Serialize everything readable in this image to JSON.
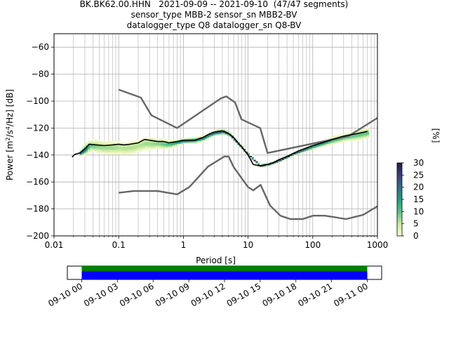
{
  "title_lines": [
    "BK.BK62.00.HHN   2021-09-09 -- 2021-09-10  (47/47 segments)",
    "sensor_type MBB-2 sensor_sn MBB2-BV",
    "datalogger_type Q8 datalogger_sn Q8-BV"
  ],
  "chart_data": {
    "type": "heatmap",
    "xlabel": "Period [s]",
    "ylabel": "Power [m²/s⁴/Hz] [dB]",
    "ylabel_parts": {
      "main": "Power [m",
      "sup1": "2",
      "mid": "/s",
      "sup2": "4",
      "end": "/Hz] [dB]"
    },
    "x_scale": "log",
    "xlim": [
      0.01,
      1000
    ],
    "ylim": [
      -200,
      -50
    ],
    "x_ticks": [
      0.01,
      0.1,
      1,
      10,
      100,
      1000
    ],
    "x_tick_labels": [
      "0.01",
      "0.1",
      "1",
      "10",
      "100",
      "1000"
    ],
    "y_ticks": [
      -200,
      -180,
      -160,
      -140,
      -120,
      -100,
      -80,
      -60
    ],
    "y_tick_labels": [
      "−200",
      "−180",
      "−160",
      "−140",
      "−120",
      "−100",
      "−80",
      "−60"
    ],
    "grid": true,
    "colorbar": {
      "label": "[%]",
      "range": [
        0,
        30
      ],
      "ticks": [
        0,
        5,
        10,
        15,
        20,
        25,
        30
      ],
      "tick_labels": [
        "0",
        "5",
        "10",
        "15",
        "20",
        "25",
        "30"
      ],
      "colors": [
        "#fefdd8",
        "#c4e89a",
        "#53c689",
        "#1e9e86",
        "#2f6f8a",
        "#3b3e86",
        "#2a1a49"
      ]
    },
    "noise_models": {
      "color": "#666666",
      "nhnm": {
        "x": [
          0.1,
          0.22,
          0.32,
          0.8,
          3.8,
          4.6,
          6.3,
          7.9,
          15.4,
          20,
          354.8,
          1000
        ],
        "y": [
          -91.5,
          -97.4,
          -110.5,
          -120,
          -98,
          -96.5,
          -101,
          -113.5,
          -120,
          -138.5,
          -126,
          -112.5
        ]
      },
      "nlnm": {
        "x": [
          0.1,
          0.17,
          0.4,
          0.8,
          1.24,
          2.4,
          4.3,
          5,
          6,
          10,
          12,
          15.6,
          21.9,
          31.6,
          45,
          70,
          101,
          154,
          328,
          600,
          1000
        ],
        "y": [
          -168,
          -166.7,
          -166.7,
          -169.2,
          -163.7,
          -148.6,
          -141.1,
          -141.1,
          -149,
          -163.8,
          -166.2,
          -162.1,
          -177.5,
          -185,
          -187.5,
          -187.5,
          -185,
          -185,
          -187.5,
          -184.4,
          -178
        ]
      }
    },
    "mode_line": {
      "color": "#000000",
      "x": [
        0.019,
        0.021,
        0.025,
        0.03,
        0.035,
        0.045,
        0.06,
        0.08,
        0.1,
        0.12,
        0.15,
        0.2,
        0.25,
        0.3,
        0.4,
        0.5,
        0.6,
        0.8,
        1,
        1.5,
        2,
        2.5,
        3,
        4,
        5,
        6,
        7,
        8,
        10,
        12,
        15,
        20,
        25,
        30,
        40,
        60,
        100,
        150,
        200,
        300,
        500,
        700
      ],
      "y": [
        -141.5,
        -139.5,
        -138.5,
        -135.5,
        -132,
        -132.5,
        -133,
        -132.5,
        -132,
        -132.5,
        -132,
        -131,
        -128.5,
        -129,
        -130,
        -130,
        -131,
        -130,
        -129,
        -129,
        -127,
        -124.5,
        -123,
        -122,
        -124,
        -127,
        -131,
        -134,
        -140,
        -147,
        -148,
        -147,
        -145.5,
        -143.5,
        -141,
        -137,
        -133,
        -130.5,
        -128.5,
        -126,
        -124,
        -122.5
      ]
    },
    "heatmap_samples": {
      "x": [
        0.025,
        0.03,
        0.035,
        0.045,
        0.06,
        0.08,
        0.1,
        0.12,
        0.15,
        0.2,
        0.25,
        0.3,
        0.4,
        0.5,
        0.6,
        0.8,
        1,
        1.5,
        2,
        2.5,
        3,
        4,
        5,
        10,
        15,
        20,
        30,
        50,
        100,
        150,
        200,
        300,
        500,
        700
      ],
      "center": [
        -138.5,
        -135.5,
        -133,
        -133.5,
        -134.5,
        -134.5,
        -134.5,
        -135,
        -134.5,
        -133,
        -131.5,
        -131.5,
        -131.5,
        -132,
        -132,
        -130.5,
        -129.5,
        -129,
        -127.5,
        -125,
        -123.5,
        -122.5,
        -124.5,
        -140,
        -148,
        -147,
        -144,
        -139,
        -133.5,
        -131,
        -129,
        -127,
        -125,
        -123.5
      ],
      "spread": [
        2,
        4,
        4,
        5,
        5,
        5,
        5,
        5,
        5,
        5,
        5,
        5,
        4,
        4,
        3,
        2,
        2,
        2,
        2,
        2,
        2,
        2,
        1.5,
        1,
        1,
        1,
        1,
        1,
        2,
        2,
        3,
        3,
        4,
        4
      ],
      "peak_percent": [
        25,
        20,
        10,
        8,
        7,
        7,
        6,
        6,
        6,
        6,
        7,
        7,
        8,
        10,
        12,
        18,
        20,
        20,
        20,
        20,
        22,
        24,
        26,
        28,
        30,
        30,
        30,
        28,
        18,
        15,
        12,
        10,
        10,
        10
      ]
    },
    "timeline": {
      "tick_labels": [
        "09-10 00",
        "09-10 03",
        "09-10 06",
        "09-10 09",
        "09-10 12",
        "09-10 15",
        "09-10 18",
        "09-10 21",
        "09-11 00"
      ],
      "bars": [
        {
          "name": "data-availability",
          "color": "#008000"
        },
        {
          "name": "psd-coverage",
          "color": "#0000ff"
        }
      ]
    }
  }
}
